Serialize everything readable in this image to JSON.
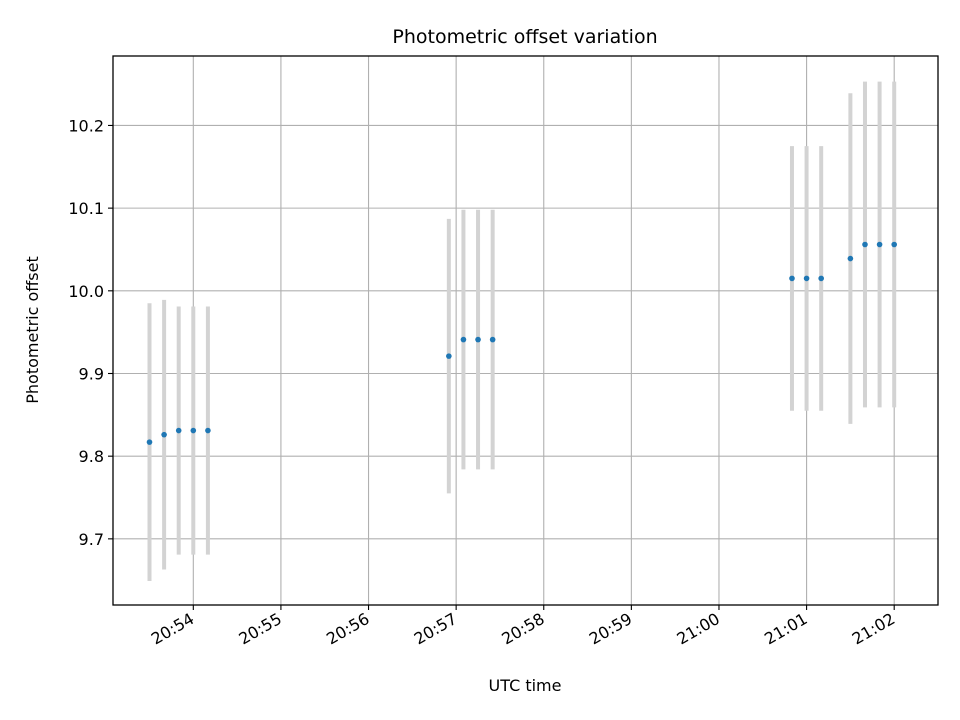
{
  "chart_data": {
    "type": "scatter",
    "title": "Photometric offset variation",
    "xlabel": "UTC time",
    "ylabel": "Photometric offset",
    "grid": true,
    "legend": "none",
    "x_tick_labels": [
      "20:54",
      "20:55",
      "20:56",
      "20:57",
      "20:58",
      "20:59",
      "21:00",
      "21:01",
      "21:02"
    ],
    "y_tick_labels": [
      "9.7",
      "9.8",
      "9.9",
      "10.0",
      "10.1",
      "10.2"
    ],
    "xlim": [
      "20:53:05",
      "21:02:30"
    ],
    "ylim": [
      9.62,
      10.284
    ],
    "colors": {
      "point": "#1f77b4",
      "errorbar": "#d3d3d3",
      "grid": "#b0b0b0"
    },
    "series": [
      {
        "points": [
          {
            "x": "20:53:30",
            "y": 9.817,
            "err": 0.168
          },
          {
            "x": "20:53:40",
            "y": 9.826,
            "err": 0.163
          },
          {
            "x": "20:53:50",
            "y": 9.831,
            "err": 0.15
          },
          {
            "x": "20:54:00",
            "y": 9.831,
            "err": 0.15
          },
          {
            "x": "20:54:10",
            "y": 9.831,
            "err": 0.15
          },
          {
            "x": "20:56:55",
            "y": 9.921,
            "err": 0.166
          },
          {
            "x": "20:57:05",
            "y": 9.941,
            "err": 0.157
          },
          {
            "x": "20:57:15",
            "y": 9.941,
            "err": 0.157
          },
          {
            "x": "20:57:25",
            "y": 9.941,
            "err": 0.157
          },
          {
            "x": "21:00:50",
            "y": 10.015,
            "err": 0.16
          },
          {
            "x": "21:01:00",
            "y": 10.015,
            "err": 0.16
          },
          {
            "x": "21:01:10",
            "y": 10.015,
            "err": 0.16
          },
          {
            "x": "21:01:30",
            "y": 10.039,
            "err": 0.2
          },
          {
            "x": "21:01:40",
            "y": 10.056,
            "err": 0.197
          },
          {
            "x": "21:01:50",
            "y": 10.056,
            "err": 0.197
          },
          {
            "x": "21:02:00",
            "y": 10.056,
            "err": 0.197
          }
        ]
      }
    ]
  }
}
